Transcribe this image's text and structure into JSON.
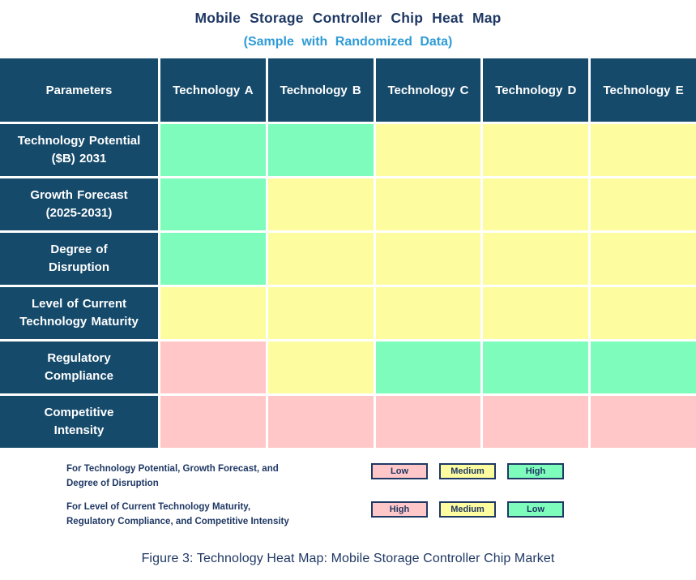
{
  "title": "Mobile Storage Controller Chip Heat Map",
  "subtitle": "(Sample with Randomized Data)",
  "caption": "Figure 3: Technology Heat Map: Mobile Storage Controller Chip Market",
  "colors": {
    "header_bg": "#154A6B",
    "title_text": "#1F3864",
    "subtitle_text": "#2E9BD6",
    "green": "#7DFCBB",
    "yellow": "#FDFD9F",
    "pink": "#FFC7C7"
  },
  "table": {
    "header": [
      "Parameters",
      "Technology A",
      "Technology B",
      "Technology C",
      "Technology D",
      "Technology E"
    ],
    "rows": [
      {
        "label_lines": [
          "Technology Potential",
          "($B) 2031"
        ],
        "cells": [
          "green",
          "green",
          "yellow",
          "yellow",
          "yellow"
        ]
      },
      {
        "label_lines": [
          "Growth Forecast",
          "(2025-2031)"
        ],
        "cells": [
          "green",
          "yellow",
          "yellow",
          "yellow",
          "yellow"
        ]
      },
      {
        "label_lines": [
          "Degree of",
          "Disruption"
        ],
        "cells": [
          "green",
          "yellow",
          "yellow",
          "yellow",
          "yellow"
        ]
      },
      {
        "label_lines": [
          "Level of Current",
          "Technology Maturity"
        ],
        "cells": [
          "yellow",
          "yellow",
          "yellow",
          "yellow",
          "yellow"
        ]
      },
      {
        "label_lines": [
          "Regulatory",
          "Compliance"
        ],
        "cells": [
          "pink",
          "yellow",
          "green",
          "green",
          "green"
        ]
      },
      {
        "label_lines": [
          "Competitive",
          "Intensity"
        ],
        "cells": [
          "pink",
          "pink",
          "pink",
          "pink",
          "pink"
        ]
      }
    ]
  },
  "legend": [
    {
      "text_lines": [
        "For Technology Potential, Growth Forecast, and",
        "Degree of Disruption"
      ],
      "boxes": [
        {
          "label": "Low",
          "color": "pink"
        },
        {
          "label": "Medium",
          "color": "yellow"
        },
        {
          "label": "High",
          "color": "green"
        }
      ]
    },
    {
      "text_lines": [
        "For Level of Current Technology Maturity,",
        "Regulatory Compliance, and Competitive Intensity"
      ],
      "boxes": [
        {
          "label": "High",
          "color": "pink"
        },
        {
          "label": "Medium",
          "color": "yellow"
        },
        {
          "label": "Low",
          "color": "green"
        }
      ]
    }
  ],
  "chart_data": {
    "type": "heatmap",
    "title": "Mobile Storage Controller Chip Heat Map",
    "subtitle": "(Sample with Randomized Data)",
    "columns": [
      "Technology A",
      "Technology B",
      "Technology C",
      "Technology D",
      "Technology E"
    ],
    "rows": [
      "Technology Potential ($B) 2031",
      "Growth Forecast (2025-2031)",
      "Degree of Disruption",
      "Level of Current Technology Maturity",
      "Regulatory Compliance",
      "Competitive Intensity"
    ],
    "values": [
      [
        "High",
        "High",
        "Medium",
        "Medium",
        "Medium"
      ],
      [
        "High",
        "Medium",
        "Medium",
        "Medium",
        "Medium"
      ],
      [
        "High",
        "Medium",
        "Medium",
        "Medium",
        "Medium"
      ],
      [
        "Medium",
        "Medium",
        "Medium",
        "Medium",
        "Medium"
      ],
      [
        "High",
        "Medium",
        "Low",
        "Low",
        "Low"
      ],
      [
        "High",
        "High",
        "High",
        "High",
        "High"
      ]
    ],
    "cell_colors": [
      [
        "green",
        "green",
        "yellow",
        "yellow",
        "yellow"
      ],
      [
        "green",
        "yellow",
        "yellow",
        "yellow",
        "yellow"
      ],
      [
        "green",
        "yellow",
        "yellow",
        "yellow",
        "yellow"
      ],
      [
        "yellow",
        "yellow",
        "yellow",
        "yellow",
        "yellow"
      ],
      [
        "pink",
        "yellow",
        "green",
        "green",
        "green"
      ],
      [
        "pink",
        "pink",
        "pink",
        "pink",
        "pink"
      ]
    ],
    "color_scale_note": "For Technology Potential, Growth Forecast, Degree of Disruption: pink=Low, yellow=Medium, green=High. For Level of Current Technology Maturity, Regulatory Compliance, Competitive Intensity: pink=High, yellow=Medium, green=Low.",
    "legend_position": "bottom",
    "caption": "Figure 3: Technology Heat Map: Mobile Storage Controller Chip Market"
  }
}
